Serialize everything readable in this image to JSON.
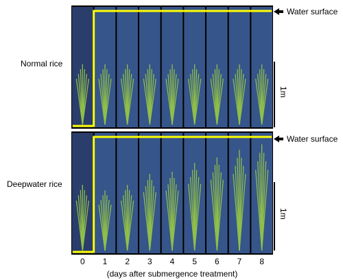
{
  "rows": [
    {
      "label": "Normal rice",
      "water_label": "Water surface",
      "scale_label": "1m"
    },
    {
      "label": "Deepwater rice",
      "water_label": "Water surface",
      "scale_label": "1m"
    }
  ],
  "days": [
    "0",
    "1",
    "2",
    "3",
    "4",
    "5",
    "6",
    "7",
    "8"
  ],
  "caption": "(days after submergence treatment)",
  "colors": {
    "highlight": "#ffff00",
    "water": "#36558a",
    "tank_empty": "#2a3d6b",
    "plant": "#8fbf4a"
  },
  "plant_heights": {
    "normal": [
      0.55,
      0.55,
      0.55,
      0.55,
      0.55,
      0.55,
      0.55,
      0.55,
      0.55
    ],
    "deepwater": [
      0.6,
      0.55,
      0.6,
      0.7,
      0.72,
      0.8,
      0.85,
      0.92,
      0.97
    ]
  }
}
